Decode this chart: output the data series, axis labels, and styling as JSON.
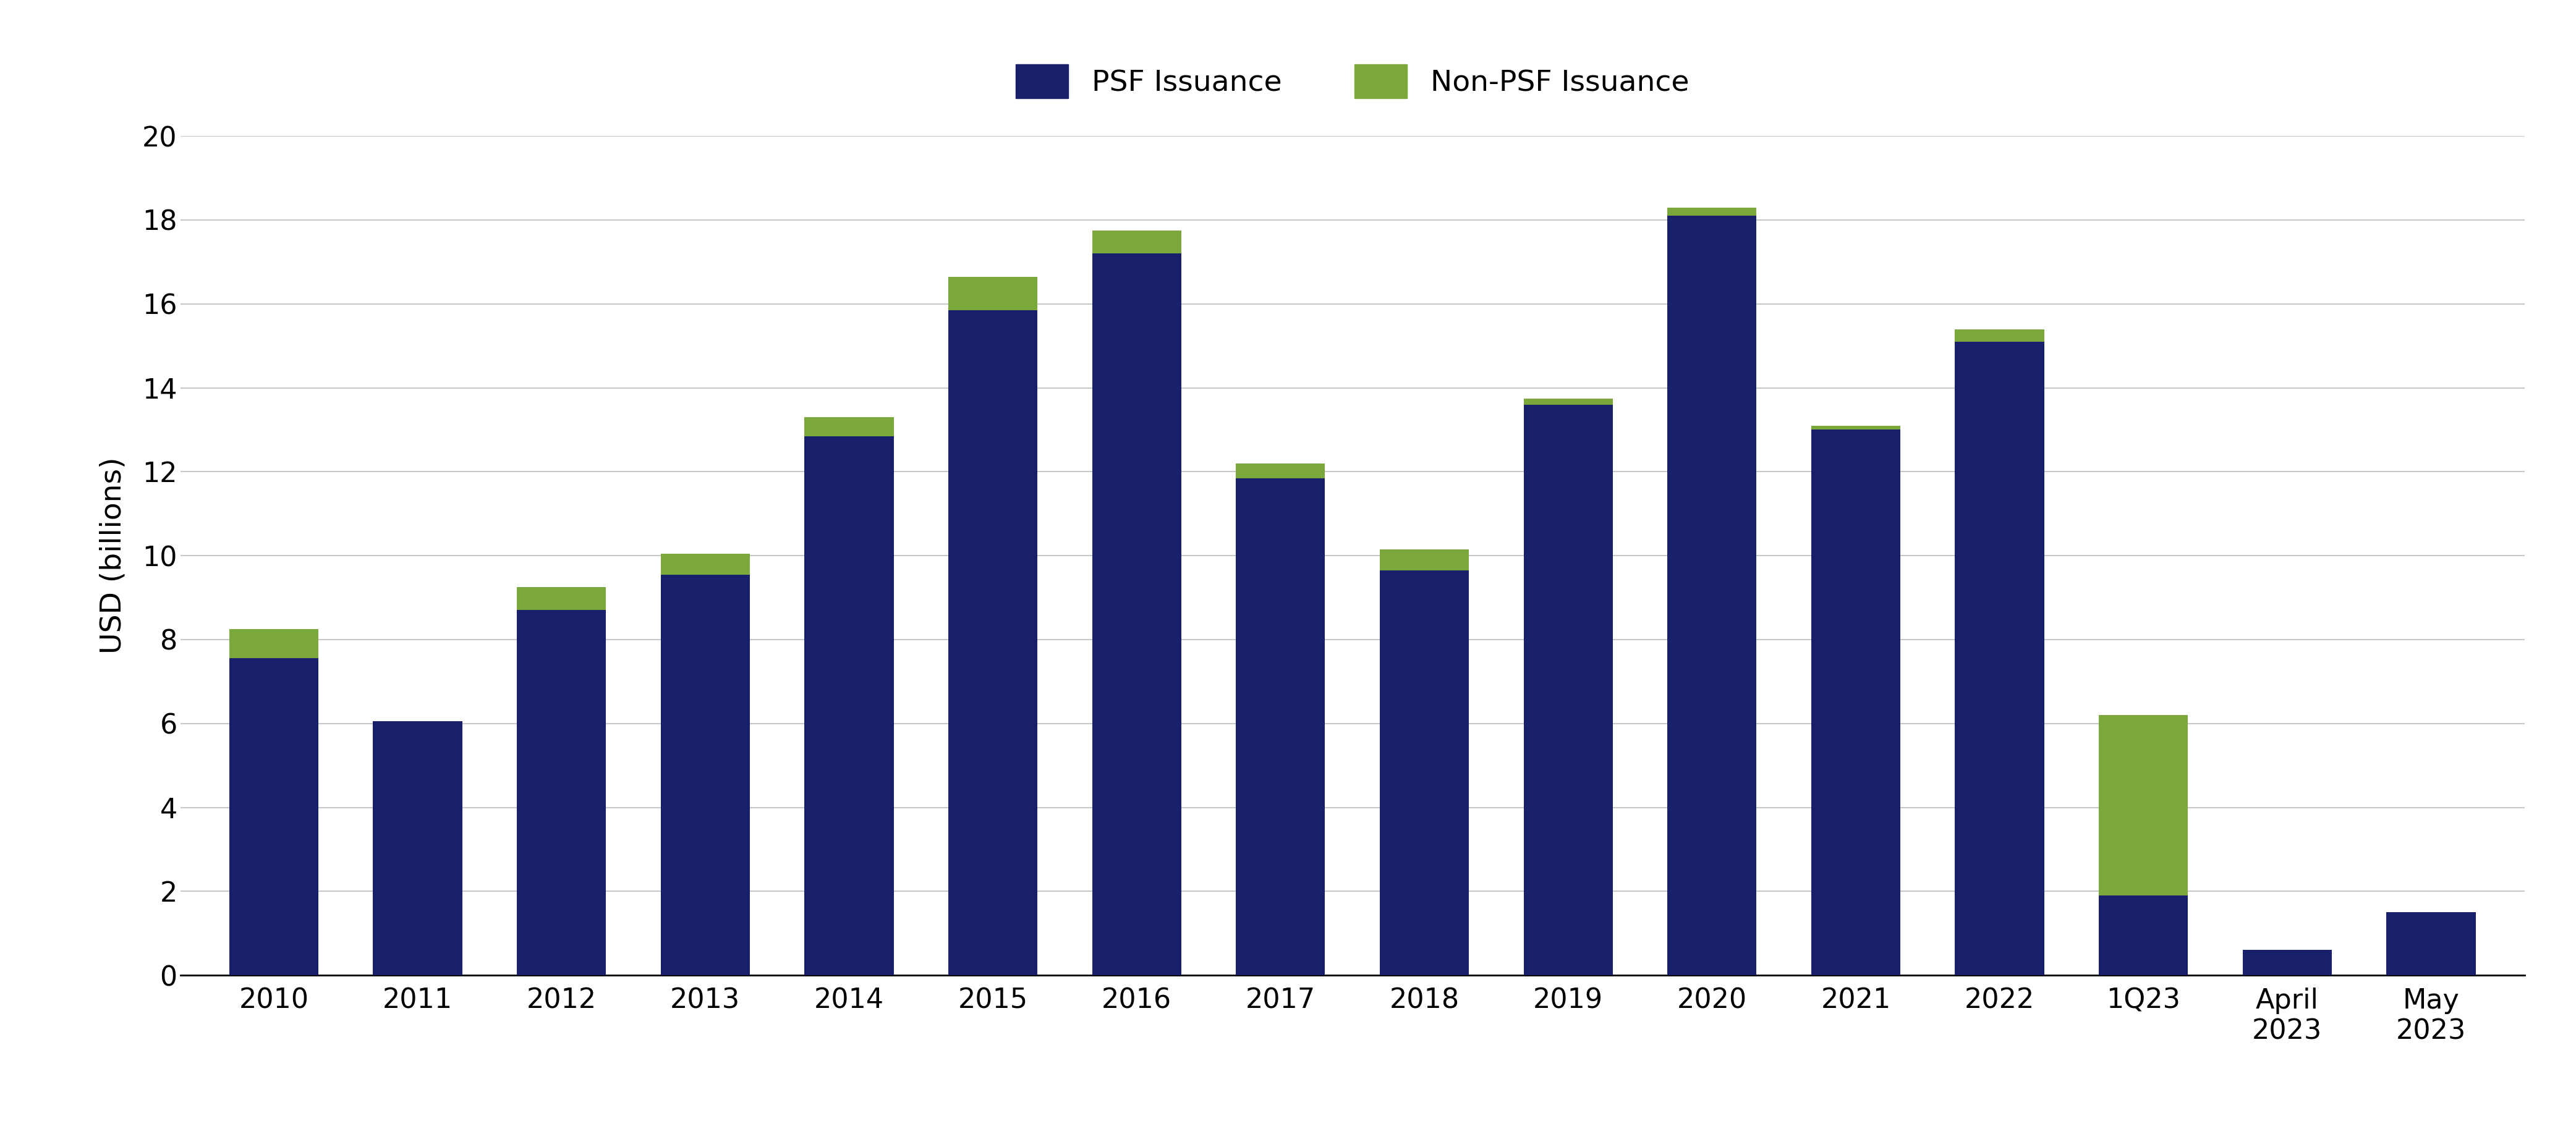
{
  "categories": [
    "2010",
    "2011",
    "2012",
    "2013",
    "2014",
    "2015",
    "2016",
    "2017",
    "2018",
    "2019",
    "2020",
    "2021",
    "2022",
    "1Q23",
    "April\n2023",
    "May\n2023"
  ],
  "psf_values": [
    7.55,
    6.05,
    8.7,
    9.55,
    12.85,
    15.85,
    17.2,
    11.85,
    9.65,
    13.6,
    18.1,
    13.0,
    15.1,
    1.9,
    0.6,
    1.5
  ],
  "non_psf_values": [
    0.7,
    0.0,
    0.55,
    0.5,
    0.45,
    0.8,
    0.55,
    0.35,
    0.5,
    0.15,
    0.2,
    0.1,
    0.3,
    4.3,
    0.0,
    0.0
  ],
  "psf_color": "#1a1f6b",
  "non_psf_color": "#7aa83a",
  "ylabel": "USD (billions)",
  "ylim": [
    0,
    20
  ],
  "yticks": [
    0,
    2,
    4,
    6,
    8,
    10,
    12,
    14,
    16,
    18,
    20
  ],
  "legend_psf": "PSF Issuance",
  "legend_non_psf": "Non-PSF Issuance",
  "background_color": "#ffffff",
  "grid_color": "#c8c8c8",
  "bar_width": 0.62,
  "axis_label_fontsize": 34,
  "tick_fontsize": 32,
  "legend_fontsize": 34
}
